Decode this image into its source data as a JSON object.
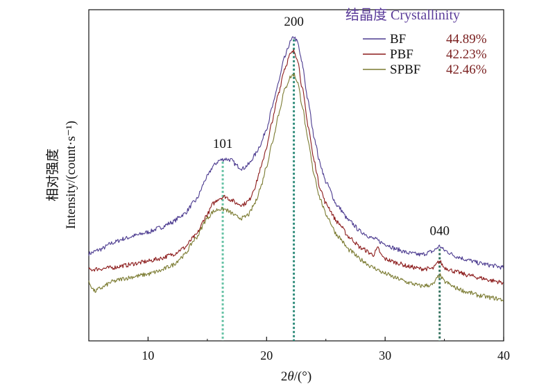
{
  "chart_data": {
    "type": "line",
    "xlabel": "2θ/(°)",
    "xlabel_parts": {
      "pre": "2",
      "theta": "θ",
      "post": "/(°)"
    },
    "ylabel_cn": "相对强度",
    "ylabel_en": "Intensity/(count·s⁻¹)",
    "xlim": [
      5,
      40
    ],
    "xticks": [
      10,
      20,
      30,
      40
    ],
    "y_ticks_shown": false,
    "grid": false,
    "legend": {
      "title": "结晶度 Crystallinity",
      "position": "top-right",
      "entries": [
        {
          "name": "BF",
          "crystallinity": "44.89%"
        },
        {
          "name": "PBF",
          "crystallinity": "42.23%"
        },
        {
          "name": "SPBF",
          "crystallinity": "42.46%"
        }
      ]
    },
    "peak_labels": [
      {
        "text": "101",
        "x": 16.3
      },
      {
        "text": "200",
        "x": 22.3
      },
      {
        "text": "040",
        "x": 34.6
      }
    ],
    "vlines": [
      16.3,
      22.3,
      34.6
    ],
    "series": [
      {
        "name": "BF",
        "color": "#4b3a8f",
        "points": [
          [
            5,
            1.02
          ],
          [
            6,
            1.1
          ],
          [
            7,
            1.22
          ],
          [
            8,
            1.3
          ],
          [
            9,
            1.36
          ],
          [
            10,
            1.42
          ],
          [
            11,
            1.5
          ],
          [
            12,
            1.6
          ],
          [
            13,
            1.75
          ],
          [
            14,
            2.0
          ],
          [
            15,
            2.45
          ],
          [
            15.5,
            2.65
          ],
          [
            16,
            2.75
          ],
          [
            16.5,
            2.78
          ],
          [
            17,
            2.76
          ],
          [
            17.5,
            2.65
          ],
          [
            18,
            2.6
          ],
          [
            18.5,
            2.68
          ],
          [
            19,
            2.85
          ],
          [
            19.5,
            3.05
          ],
          [
            20,
            3.35
          ],
          [
            20.5,
            3.75
          ],
          [
            21,
            4.2
          ],
          [
            21.5,
            4.65
          ],
          [
            22,
            4.95
          ],
          [
            22.3,
            5.05
          ],
          [
            22.6,
            4.95
          ],
          [
            23,
            4.55
          ],
          [
            23.5,
            3.85
          ],
          [
            24,
            3.2
          ],
          [
            24.5,
            2.7
          ],
          [
            25,
            2.35
          ],
          [
            26,
            1.9
          ],
          [
            27,
            1.62
          ],
          [
            28,
            1.42
          ],
          [
            29,
            1.3
          ],
          [
            30,
            1.2
          ],
          [
            31,
            1.1
          ],
          [
            32,
            1.03
          ],
          [
            33,
            1.0
          ],
          [
            34,
            1.06
          ],
          [
            34.6,
            1.16
          ],
          [
            35,
            1.08
          ],
          [
            36,
            0.97
          ],
          [
            37,
            0.9
          ],
          [
            38,
            0.84
          ],
          [
            39,
            0.8
          ],
          [
            40,
            0.76
          ]
        ]
      },
      {
        "name": "PBF",
        "color": "#8b1a1a",
        "points": [
          [
            5,
            0.72
          ],
          [
            6,
            0.74
          ],
          [
            7,
            0.76
          ],
          [
            8,
            0.8
          ],
          [
            9,
            0.84
          ],
          [
            10,
            0.88
          ],
          [
            11,
            0.93
          ],
          [
            12,
            1.0
          ],
          [
            13,
            1.12
          ],
          [
            14,
            1.35
          ],
          [
            15,
            1.75
          ],
          [
            15.5,
            1.95
          ],
          [
            16,
            2.05
          ],
          [
            16.5,
            2.08
          ],
          [
            17,
            2.02
          ],
          [
            17.5,
            1.95
          ],
          [
            18,
            1.93
          ],
          [
            18.5,
            2.0
          ],
          [
            19,
            2.25
          ],
          [
            19.5,
            2.6
          ],
          [
            20,
            3.0
          ],
          [
            20.5,
            3.5
          ],
          [
            21,
            4.0
          ],
          [
            21.5,
            4.45
          ],
          [
            22,
            4.72
          ],
          [
            22.3,
            4.78
          ],
          [
            22.6,
            4.65
          ],
          [
            23,
            4.1
          ],
          [
            23.5,
            3.4
          ],
          [
            24,
            2.75
          ],
          [
            24.5,
            2.25
          ],
          [
            25,
            1.95
          ],
          [
            26,
            1.6
          ],
          [
            27,
            1.32
          ],
          [
            28,
            1.12
          ],
          [
            29,
            1.0
          ],
          [
            29.4,
            1.12
          ],
          [
            29.7,
            0.98
          ],
          [
            30,
            0.92
          ],
          [
            31,
            0.85
          ],
          [
            32,
            0.78
          ],
          [
            33,
            0.74
          ],
          [
            34,
            0.74
          ],
          [
            34.6,
            0.88
          ],
          [
            35,
            0.76
          ],
          [
            36,
            0.68
          ],
          [
            37,
            0.62
          ],
          [
            38,
            0.57
          ],
          [
            39,
            0.52
          ],
          [
            40,
            0.48
          ]
        ]
      },
      {
        "name": "SPBF",
        "color": "#7a7a30",
        "points": [
          [
            5,
            0.48
          ],
          [
            5.5,
            0.32
          ],
          [
            6,
            0.38
          ],
          [
            7,
            0.5
          ],
          [
            8,
            0.56
          ],
          [
            9,
            0.6
          ],
          [
            10,
            0.64
          ],
          [
            11,
            0.7
          ],
          [
            12,
            0.8
          ],
          [
            13,
            0.98
          ],
          [
            14,
            1.3
          ],
          [
            15,
            1.68
          ],
          [
            15.5,
            1.8
          ],
          [
            16,
            1.85
          ],
          [
            16.5,
            1.84
          ],
          [
            17,
            1.78
          ],
          [
            17.5,
            1.7
          ],
          [
            18,
            1.68
          ],
          [
            18.5,
            1.75
          ],
          [
            19,
            1.95
          ],
          [
            19.5,
            2.25
          ],
          [
            20,
            2.65
          ],
          [
            20.5,
            3.1
          ],
          [
            21,
            3.6
          ],
          [
            21.5,
            4.05
          ],
          [
            22,
            4.3
          ],
          [
            22.3,
            4.35
          ],
          [
            22.6,
            4.22
          ],
          [
            23,
            3.78
          ],
          [
            23.5,
            3.1
          ],
          [
            24,
            2.5
          ],
          [
            24.5,
            2.05
          ],
          [
            25,
            1.75
          ],
          [
            26,
            1.35
          ],
          [
            27,
            1.08
          ],
          [
            28,
            0.9
          ],
          [
            29,
            0.76
          ],
          [
            30,
            0.65
          ],
          [
            31,
            0.56
          ],
          [
            32,
            0.48
          ],
          [
            33,
            0.42
          ],
          [
            34,
            0.44
          ],
          [
            34.6,
            0.62
          ],
          [
            35,
            0.5
          ],
          [
            36,
            0.38
          ],
          [
            37,
            0.3
          ],
          [
            38,
            0.24
          ],
          [
            39,
            0.2
          ],
          [
            40,
            0.16
          ]
        ]
      }
    ]
  }
}
